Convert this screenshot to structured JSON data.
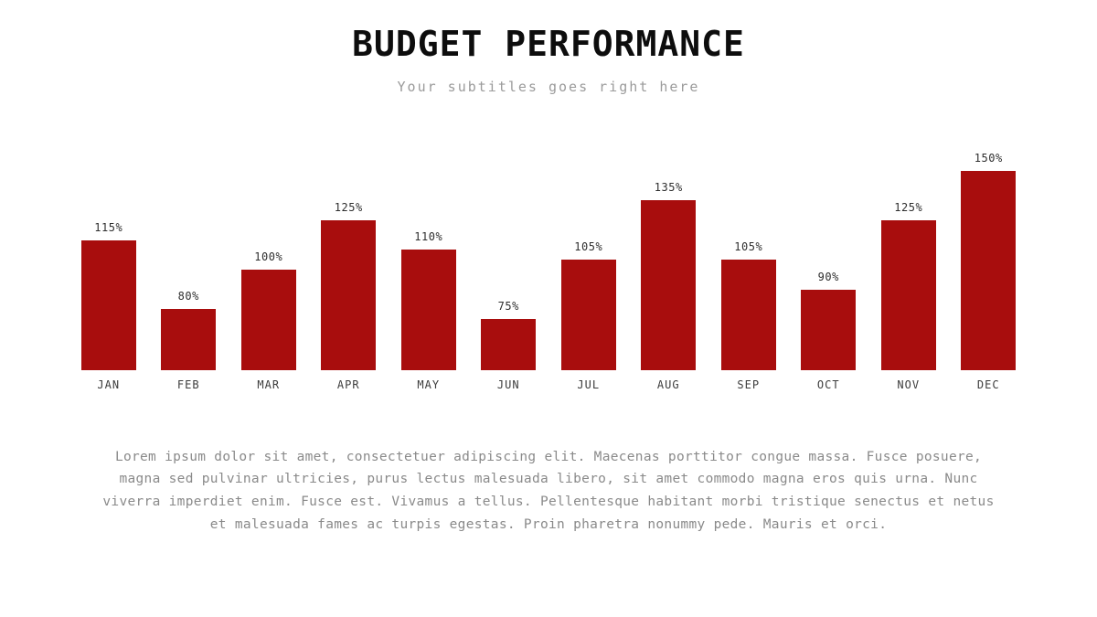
{
  "slide": {
    "title": "BUDGET PERFORMANCE",
    "subtitle": "Your subtitles goes right here",
    "body_text": "Lorem ipsum dolor sit amet, consectetuer adipiscing elit. Maecenas porttitor congue massa. Fusce posuere, magna sed pulvinar ultricies, purus lectus malesuada libero, sit amet commodo magna eros quis urna. Nunc viverra imperdiet enim. Fusce est. Vivamus a tellus. Pellentesque habitant morbi tristique senectus et netus et malesuada fames ac turpis egestas. Proin pharetra nonummy pede. Mauris et orci."
  },
  "chart_data": {
    "type": "bar",
    "title": "BUDGET PERFORMANCE",
    "categories": [
      "JAN",
      "FEB",
      "MAR",
      "APR",
      "MAY",
      "JUN",
      "JUL",
      "AUG",
      "SEP",
      "OCT",
      "NOV",
      "DEC"
    ],
    "values": [
      115,
      80,
      100,
      125,
      110,
      75,
      105,
      135,
      105,
      90,
      125,
      150
    ],
    "labels": [
      "115%",
      "80%",
      "100%",
      "125%",
      "110%",
      "75%",
      "105%",
      "135%",
      "105%",
      "90%",
      "125%",
      "150%"
    ],
    "xlabel": "",
    "ylabel": "",
    "ylim": [
      50,
      160
    ],
    "grid": false,
    "legend": false,
    "bar_color": "#a80d0d",
    "data_label_position": "above-bar"
  }
}
